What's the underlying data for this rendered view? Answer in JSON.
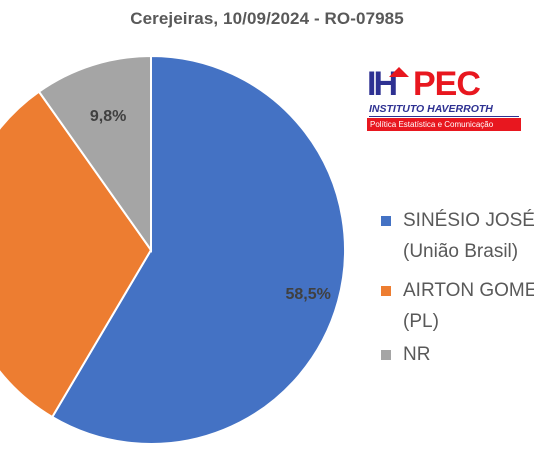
{
  "chart_data": {
    "type": "pie",
    "title": "Cerejeiras,  10/09/2024 - RO-07985",
    "start_angle_deg": 0,
    "direction": "clockwise",
    "slices": [
      {
        "name": "SINÉSIO JOSÉ (União Brasil)",
        "value": 58.5,
        "label": "58,5%",
        "color": "#4472c4"
      },
      {
        "name": "AIRTON GOMES (PL)",
        "value": 31.7,
        "label": "%",
        "color": "#ed7d31"
      },
      {
        "name": "NR",
        "value": 9.8,
        "label": "9,8%",
        "color": "#a5a5a5"
      }
    ],
    "legend": {
      "position": "right",
      "entries": [
        {
          "line1": "SINÉSIO JOSÉ",
          "line2": "(União Brasil)",
          "color": "#4472c4"
        },
        {
          "line1": "AIRTON GOMES",
          "line2": "(PL)",
          "color": "#ed7d31"
        },
        {
          "line1": "NR",
          "line2": "",
          "color": "#a5a5a5"
        }
      ]
    }
  },
  "logo": {
    "mark_left": "IH",
    "mark_right": "PEC",
    "line1": "INSTITUTO HAVERROTH",
    "line2": "Política Estatística e Comunicação"
  }
}
